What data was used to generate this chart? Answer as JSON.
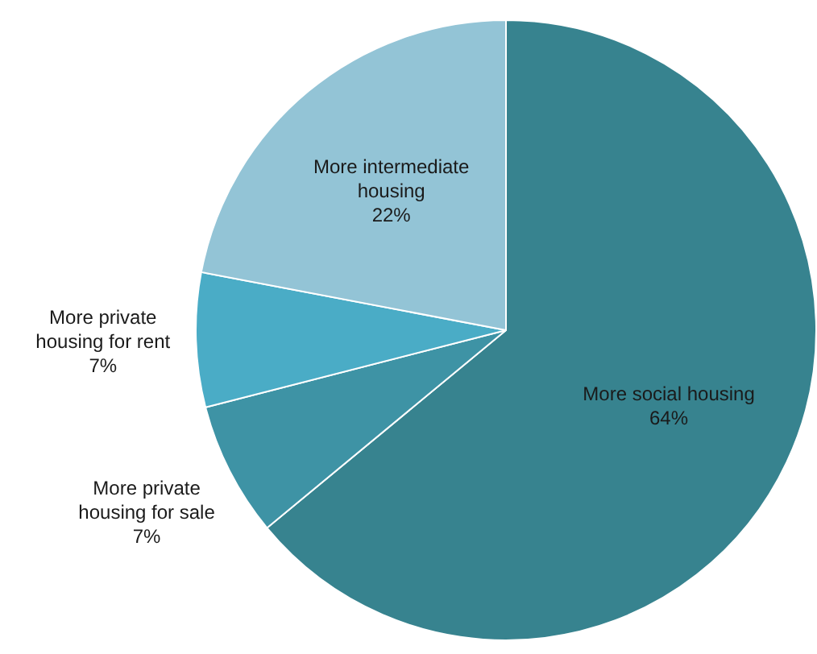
{
  "chart_data": {
    "type": "pie",
    "categories": [
      "More social housing",
      "More private housing for sale",
      "More private housing for rent",
      "More intermediate housing"
    ],
    "values": [
      64,
      7,
      7,
      22
    ],
    "colors": [
      "#37838f",
      "#3e93a5",
      "#4aacc6",
      "#93c4d6"
    ],
    "value_labels": [
      "64%",
      "7%",
      "7%",
      "22%"
    ],
    "legend": false
  }
}
